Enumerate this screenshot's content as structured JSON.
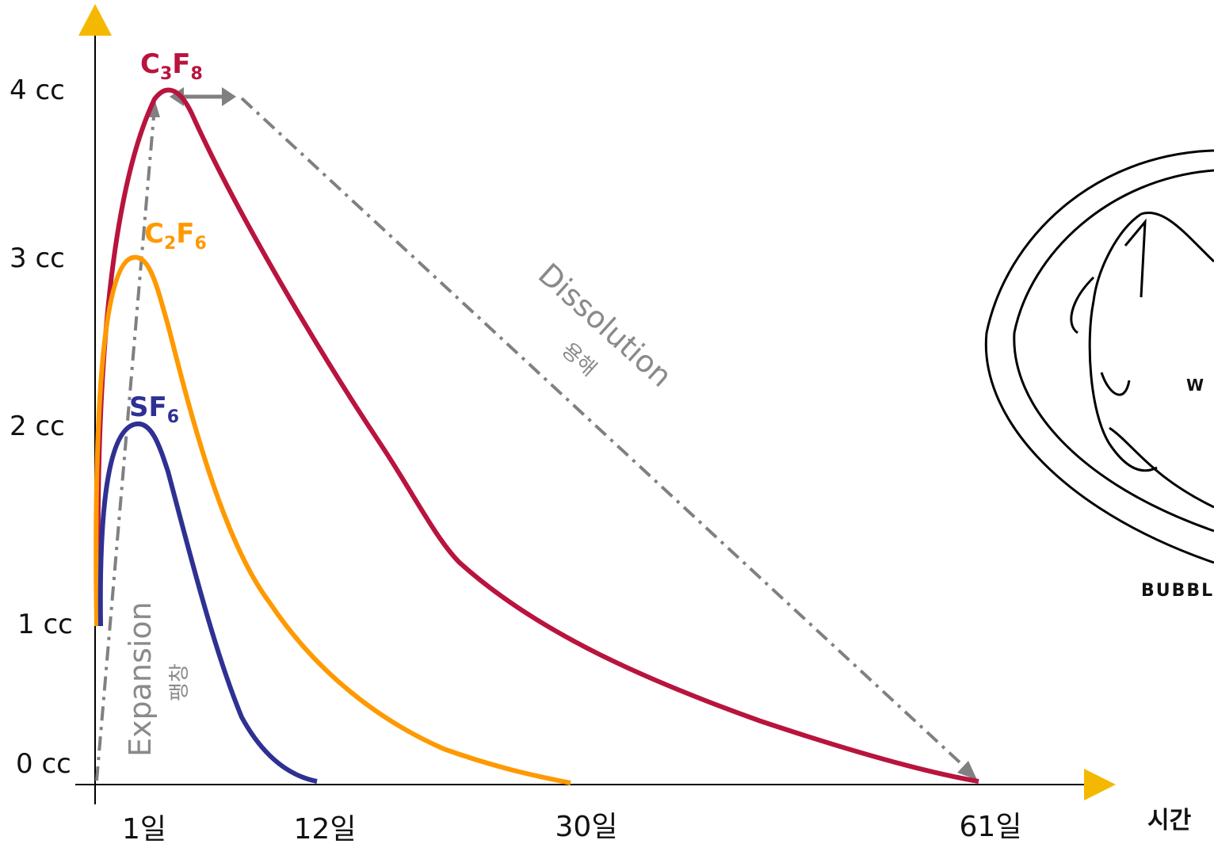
{
  "y_axis": {
    "labels": [
      "4 cc",
      "3 cc",
      "2 cc",
      "1 cc",
      "0 cc"
    ]
  },
  "x_axis": {
    "labels": [
      "1일",
      "12일",
      "30일",
      "61일"
    ],
    "title": "시간"
  },
  "gases": [
    {
      "parts": [
        "C",
        "3",
        "F",
        "8"
      ]
    },
    {
      "parts": [
        "C",
        "2",
        "F",
        "6"
      ]
    },
    {
      "parts": [
        "SF",
        "6"
      ]
    }
  ],
  "annotations": {
    "expansion": "Expansion",
    "expansion_ko": "팽창",
    "dissolution": "Dissolution",
    "dissolution_ko": "용해"
  },
  "figure": {
    "label_w": "W",
    "caption": "BUBBL"
  }
}
